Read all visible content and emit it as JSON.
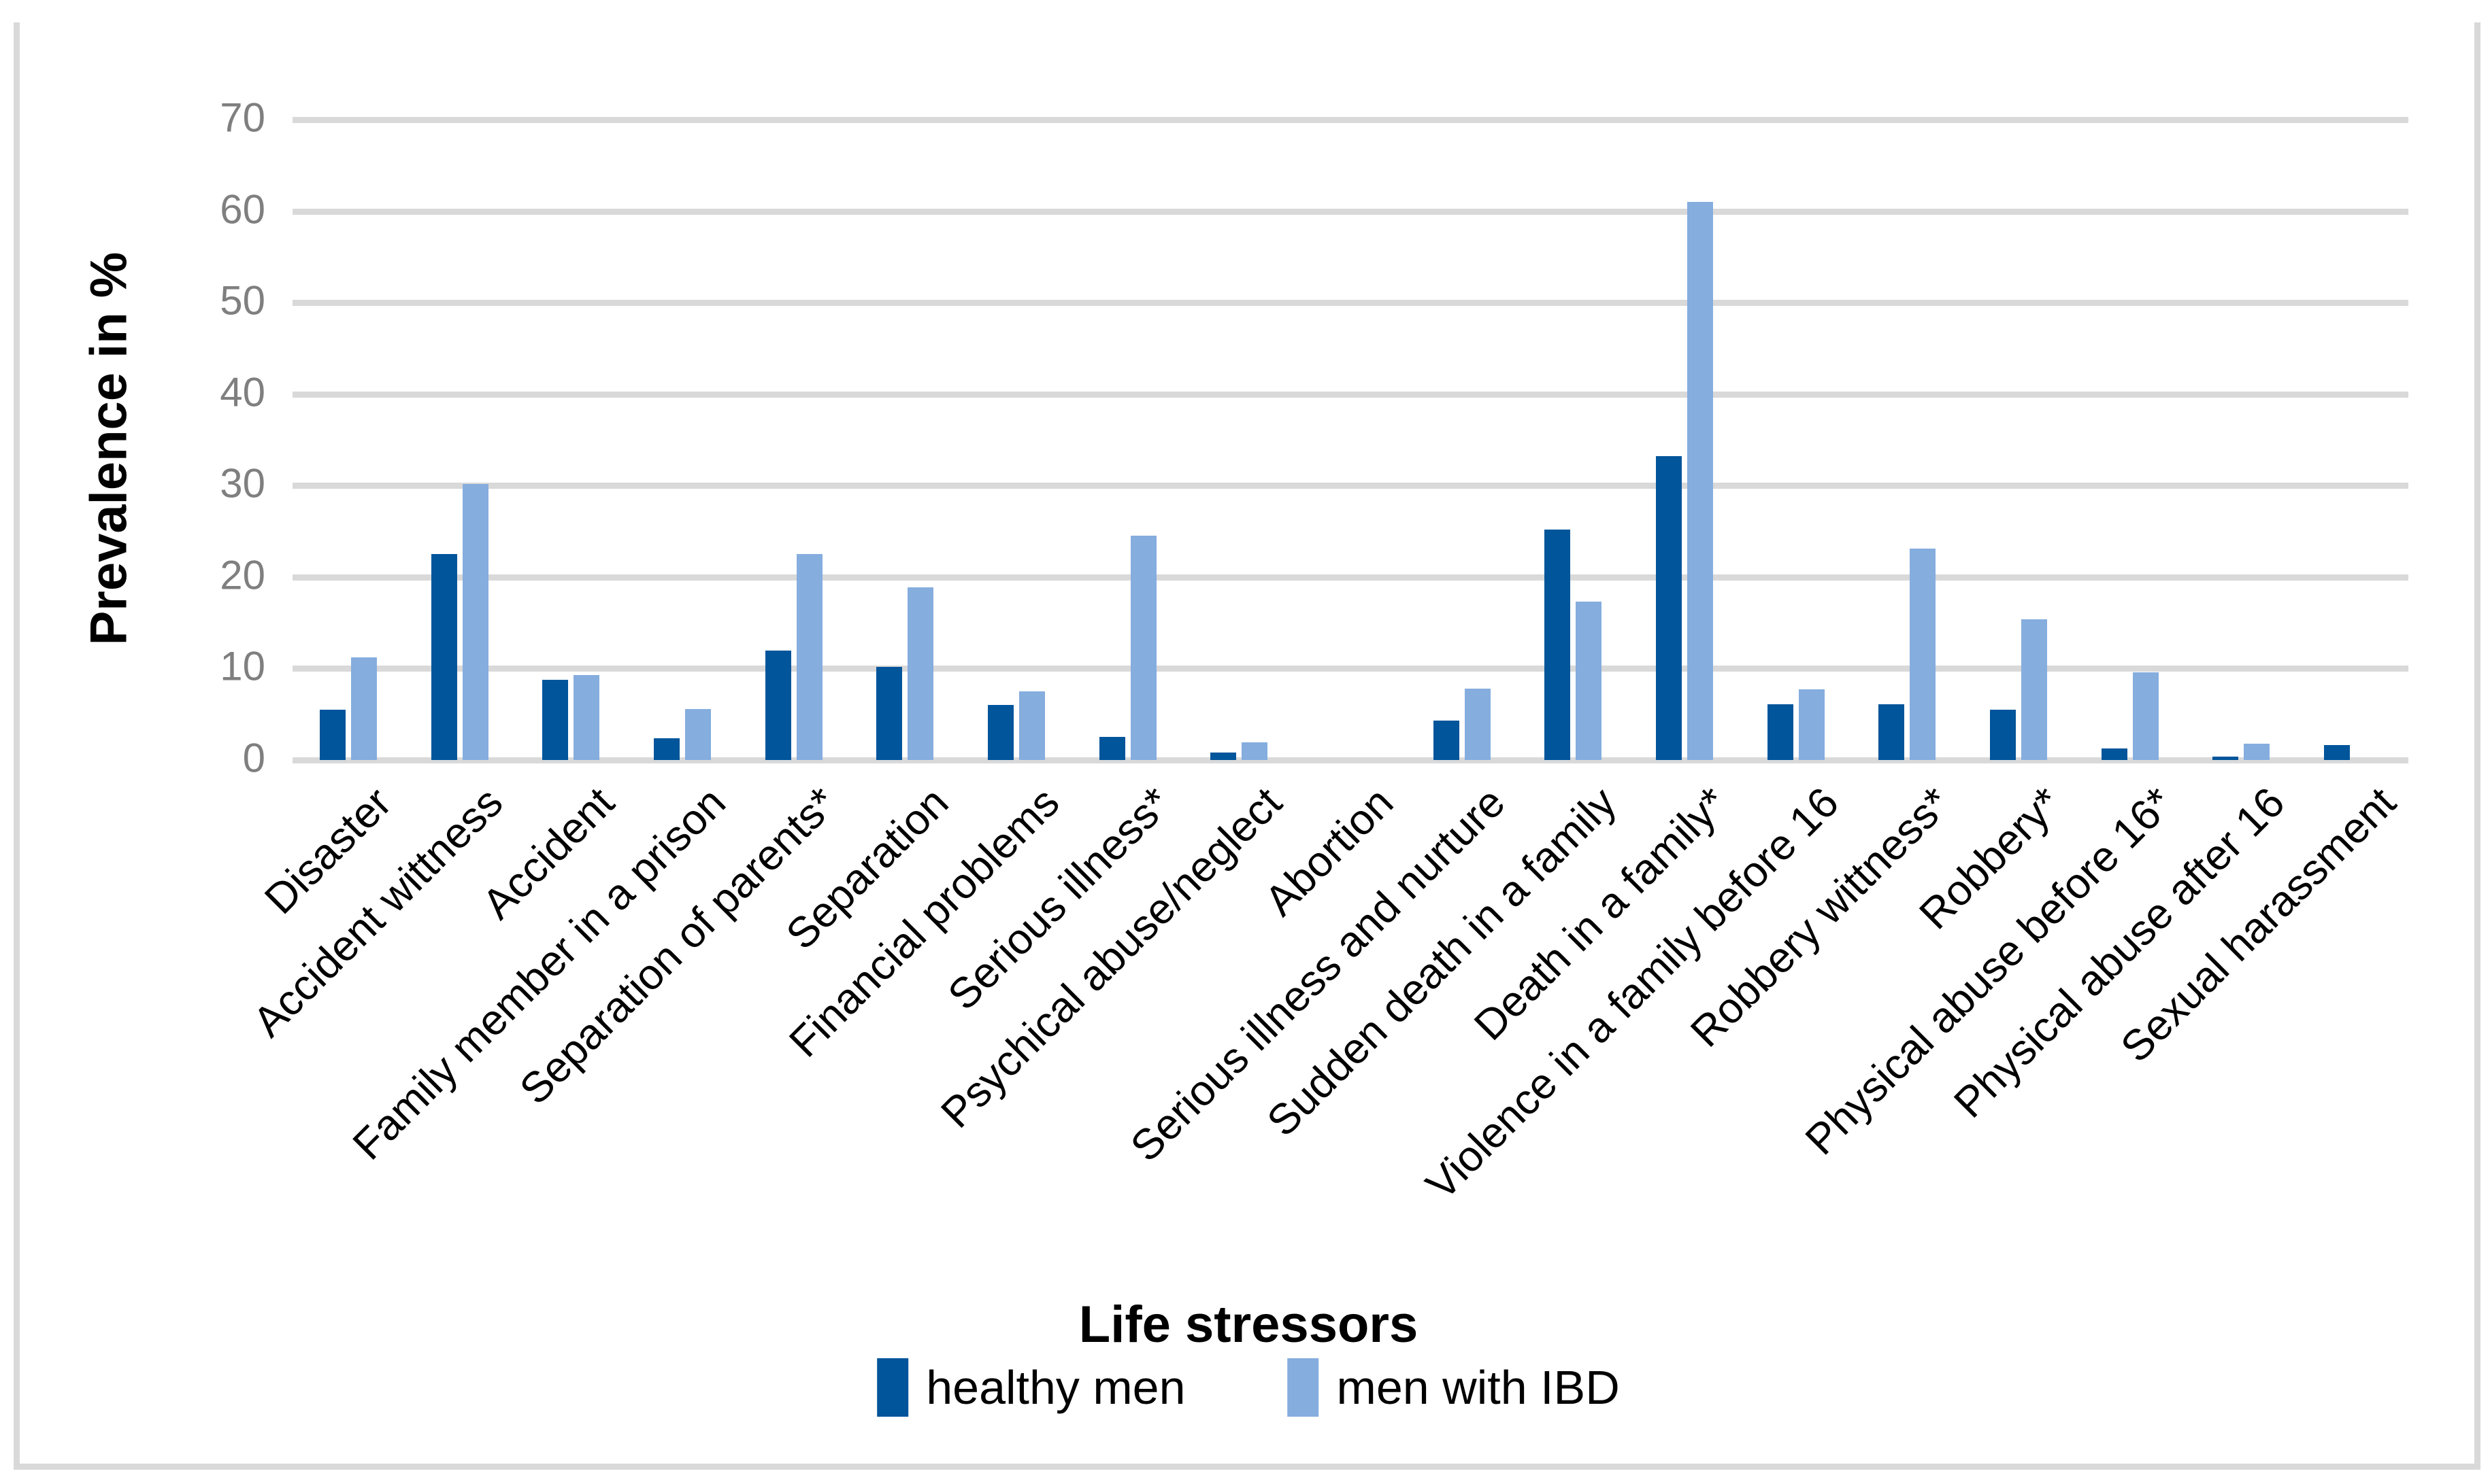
{
  "chart_data": {
    "type": "bar",
    "title": "",
    "xlabel": "Life stressors",
    "ylabel": "Prevalence in %",
    "ylim": [
      0,
      70
    ],
    "yticks": [
      0,
      10,
      20,
      30,
      40,
      50,
      60,
      70
    ],
    "grid": true,
    "legend_position": "bottom-center",
    "categories": [
      "Disaster",
      "Accident wittness",
      "Accident",
      "Family member  in a  prison",
      "Separation of parents*",
      "Separation",
      "Financial problems",
      "Serious illness*",
      "Psychical abuse/neglect",
      "Abortion",
      "Serious illness and nurture",
      "Sudden death in a family",
      "Death in a family*",
      "Violence in a family before 16",
      "Robbery wittness*",
      "Robbery*",
      "Physical abuse before 16*",
      "Physical abuse after 16",
      "Sexual harassment"
    ],
    "series": [
      {
        "name": "healthy men",
        "color": "#00559B",
        "values": [
          5.5,
          22.5,
          8.8,
          2.4,
          12.0,
          10.2,
          6.0,
          2.5,
          0.8,
          0,
          4.3,
          25.2,
          33.2,
          6.1,
          6.1,
          5.5,
          1.3,
          0.4,
          1.6
        ]
      },
      {
        "name": "men with IBD",
        "color": "#85ADDE",
        "values": [
          11.2,
          30.2,
          9.3,
          5.6,
          22.5,
          18.9,
          7.5,
          24.5,
          1.9,
          0,
          7.8,
          17.3,
          61.0,
          7.7,
          23.1,
          15.4,
          9.6,
          1.8,
          0
        ]
      }
    ]
  },
  "colors": {
    "gridline": "#D9D9D9",
    "frame": "#D9D9D9",
    "tick_label": "#7F7F7F",
    "text": "#000000",
    "background": "#FFFFFF"
  }
}
